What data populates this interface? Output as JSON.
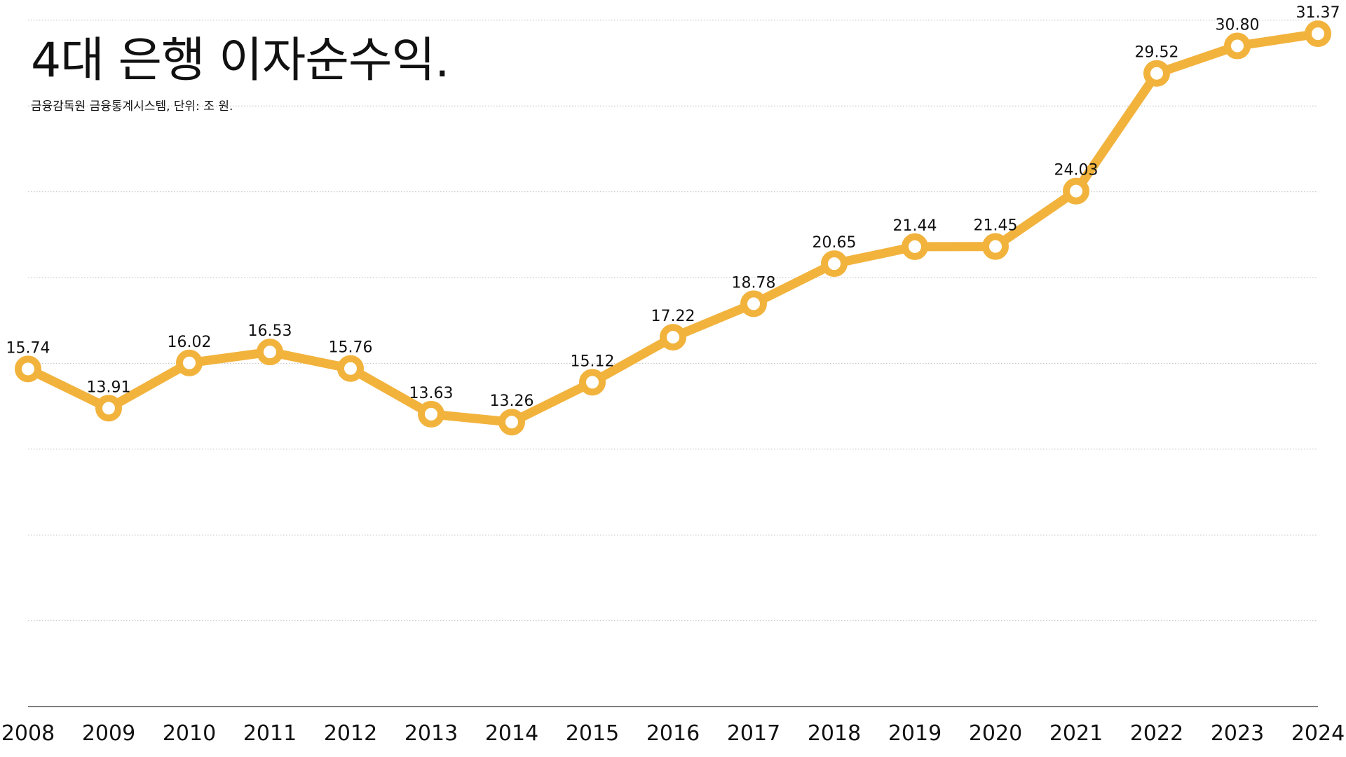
{
  "title": "4대 은행 이자순수익.",
  "subtitle": "금융감독원 금융통계시스템, 단위: 조 원.",
  "colors": {
    "line": "#F2B33D",
    "marker_fill": "#ffffff",
    "grid": "#bdbdbd",
    "axis": "#555555",
    "text": "#111111"
  },
  "chart_data": {
    "type": "line",
    "title": "4대 은행 이자순수익.",
    "subtitle": "금융감독원 금융통계시스템, 단위: 조 원.",
    "categories": [
      "2008",
      "2009",
      "2010",
      "2011",
      "2012",
      "2013",
      "2014",
      "2015",
      "2016",
      "2017",
      "2018",
      "2019",
      "2020",
      "2021",
      "2022",
      "2023",
      "2024"
    ],
    "values": [
      15.74,
      13.91,
      16.02,
      16.53,
      15.76,
      13.63,
      13.26,
      15.12,
      17.22,
      18.78,
      20.65,
      21.44,
      21.45,
      24.03,
      29.52,
      30.8,
      31.37
    ],
    "value_labels": [
      "15.74",
      "13.91",
      "16.02",
      "16.53",
      "15.76",
      "13.63",
      "13.26",
      "15.12",
      "17.22",
      "18.78",
      "20.65",
      "21.44",
      "21.45",
      "24.03",
      "29.52",
      "30.80",
      "31.37"
    ],
    "xlabel": "",
    "ylabel": "",
    "ylim": [
      0,
      32
    ],
    "grid": true,
    "grid_style": "dotted",
    "legend": "none",
    "data_labels": true,
    "y_tick_labels_shown": false
  }
}
